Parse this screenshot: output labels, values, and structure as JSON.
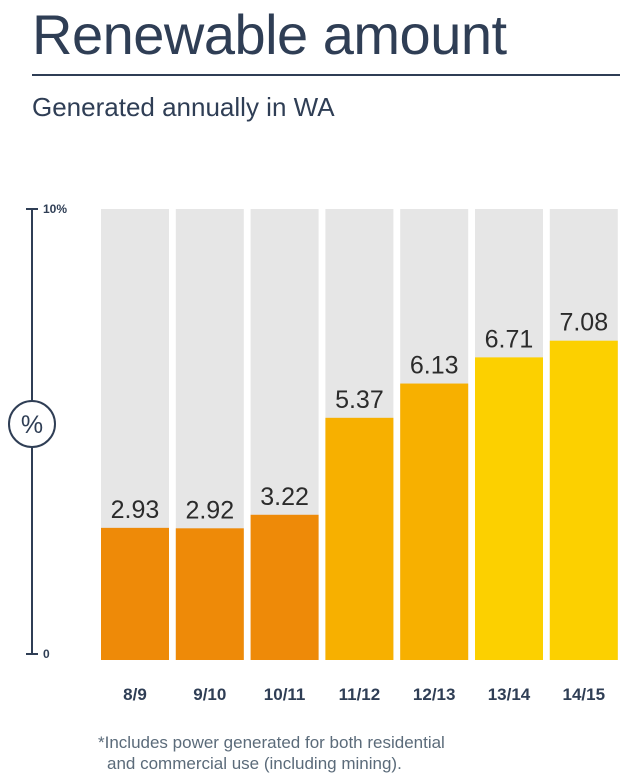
{
  "header": {
    "title": "Renewable amount",
    "subtitle": "Generated annually in WA"
  },
  "axis": {
    "top_label": "10%",
    "bottom_label": "0",
    "unit_badge": "%"
  },
  "chart_data": {
    "type": "bar",
    "title": "Renewable amount",
    "subtitle": "Generated annually in WA",
    "ylabel": "%",
    "ylim": [
      0,
      10
    ],
    "categories": [
      "8/9",
      "9/10",
      "10/11",
      "11/12",
      "12/13",
      "13/14",
      "14/15"
    ],
    "values": [
      2.93,
      2.92,
      3.22,
      5.37,
      6.13,
      6.71,
      7.08
    ],
    "value_labels": [
      "2.93",
      "2.92",
      "3.22",
      "5.37",
      "6.13",
      "6.71",
      "7.08"
    ],
    "colors": [
      "#ee8a08",
      "#ee8a08",
      "#ee8a08",
      "#f7b000",
      "#f7b000",
      "#fcd000",
      "#fcd000"
    ],
    "background_bar_color": "#e6e6e6",
    "grid": false,
    "legend": "none"
  },
  "footnote": {
    "line1": "*Includes power generated for both residential",
    "line2": "and commercial use (including mining)."
  }
}
